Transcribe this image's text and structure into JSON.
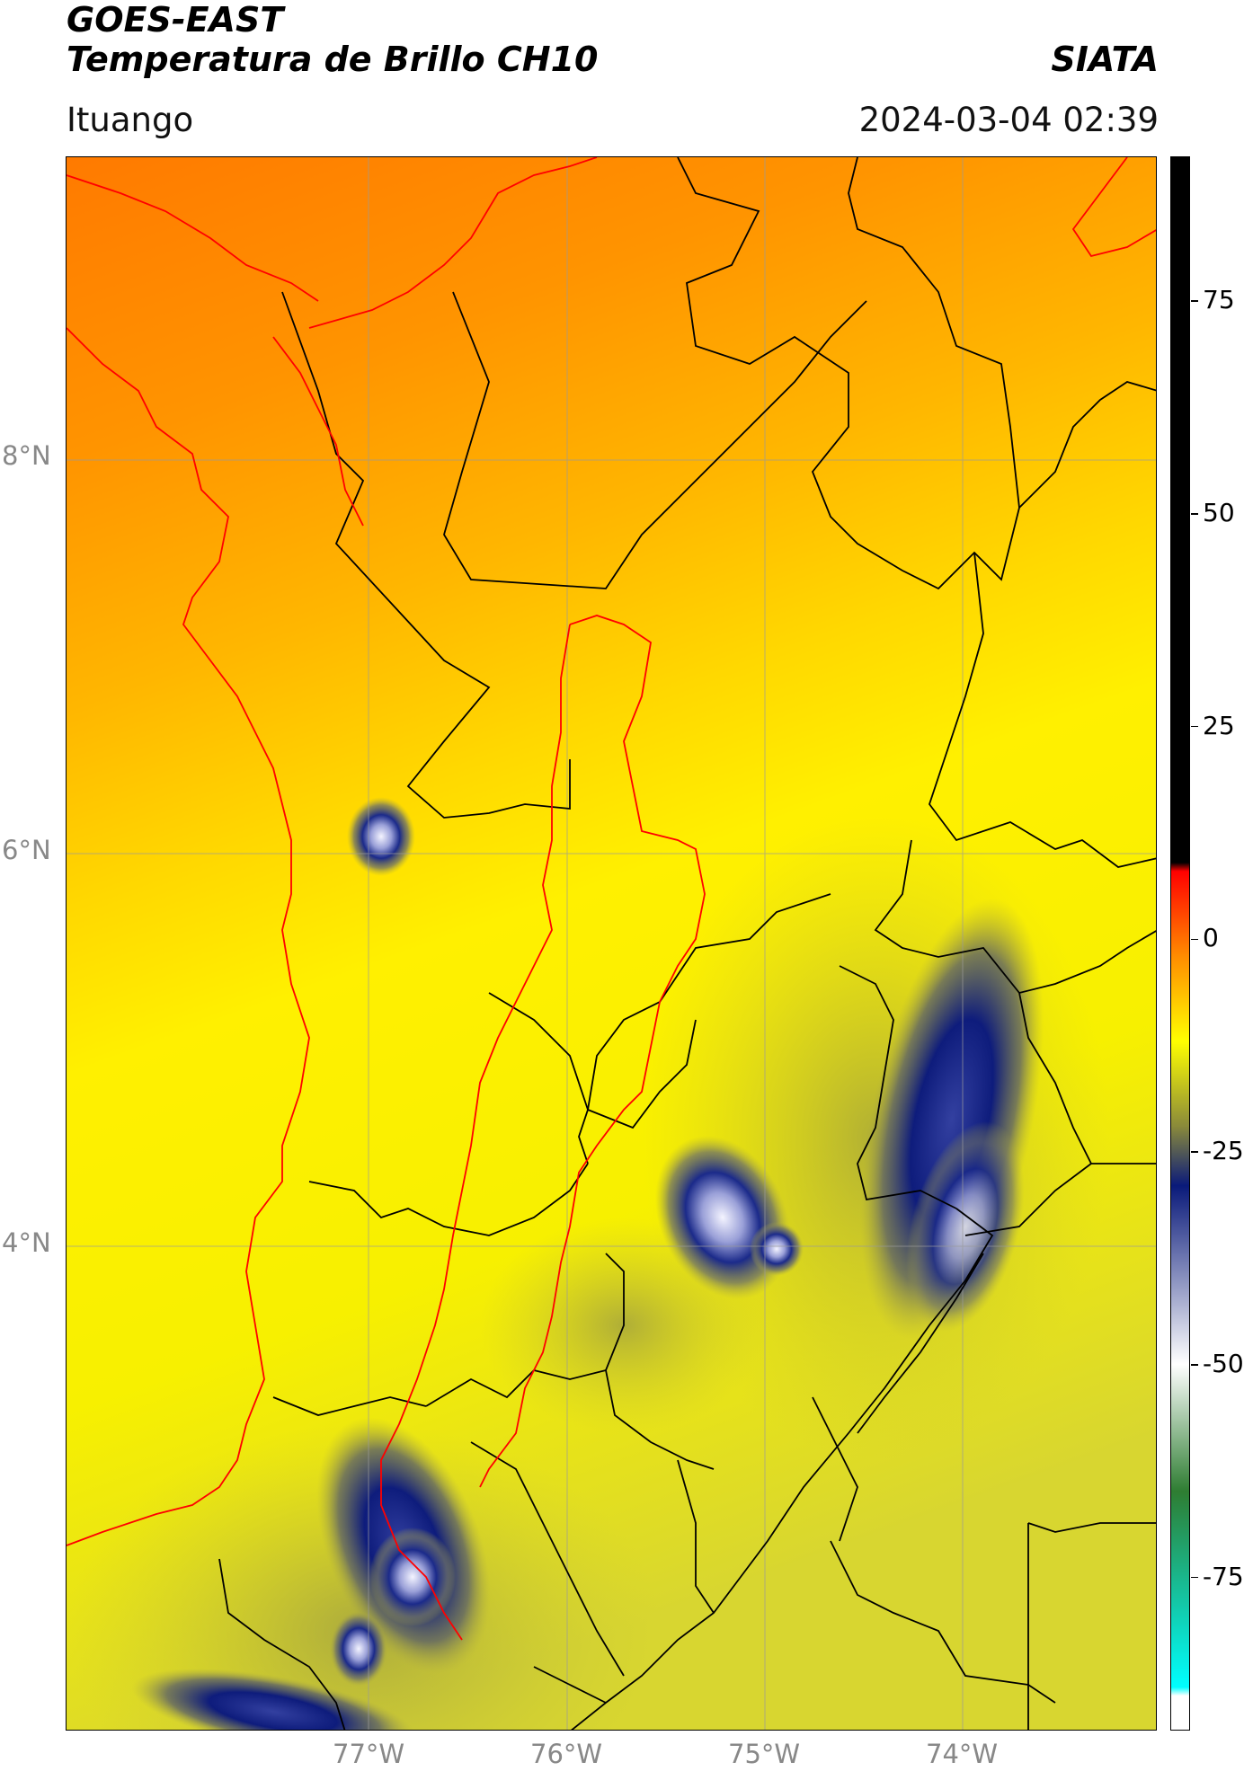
{
  "header": {
    "title_line1": "GOES-EAST",
    "title_line2": "Temperatura de Brillo CH10",
    "brand": "SIATA",
    "subtitle": "Ituango",
    "datetime": "2024-03-04 02:39"
  },
  "map": {
    "lat_labels": [
      "8°N",
      "6°N",
      "4°N"
    ],
    "lon_labels": [
      "77°W",
      "76°W",
      "75°W",
      "74°W"
    ],
    "border_colors": {
      "coast_and_department": "#ff0000",
      "municipal": "#000000"
    },
    "gridlines": true
  },
  "colorbar": {
    "tick_labels": [
      "75",
      "50",
      "25",
      "0",
      "-25",
      "-50",
      "-75"
    ],
    "tick_values": [
      75,
      50,
      25,
      0,
      -25,
      -50,
      -75
    ],
    "range": [
      -93,
      92
    ],
    "colors": {
      "warm_top": "#000000",
      "red": "#ff0000",
      "orange": "#ff8c00",
      "yellow": "#ffff00",
      "olive": "#8a8a3a",
      "navy": "#0a1a7a",
      "white": "#ffffff",
      "green": "#2e7d32",
      "cyan": "#00ffff"
    }
  }
}
